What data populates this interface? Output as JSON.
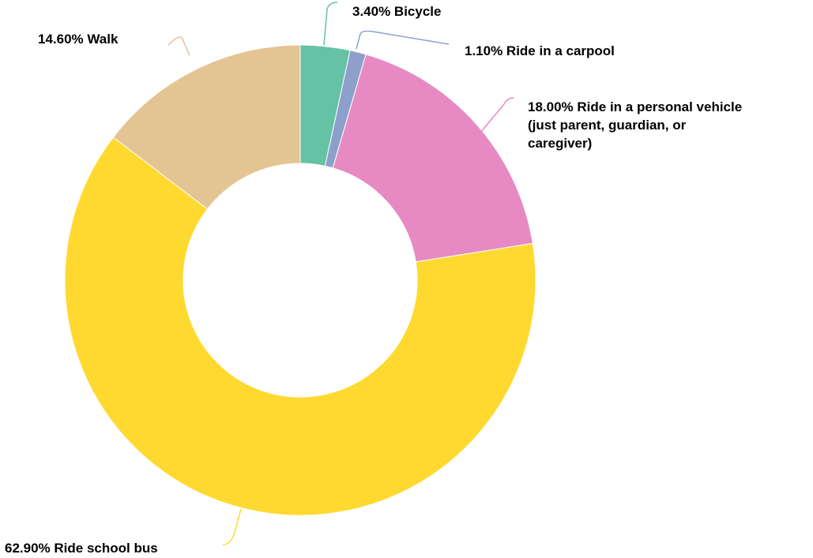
{
  "chart_data": {
    "type": "pie",
    "donut": true,
    "title": "",
    "legend": "none",
    "slices": [
      {
        "label": "Bicycle",
        "value": 3.4,
        "value_text": "3.40%",
        "color": "#66c2a5"
      },
      {
        "label": "Ride in a carpool",
        "value": 1.1,
        "value_text": "1.10%",
        "color": "#8da0cb"
      },
      {
        "label": "Ride in a personal vehicle (just parent, guardian, or caregiver)",
        "value": 18.0,
        "value_text": "18.00%",
        "color": "#e78ac3",
        "label_lines": [
          "18.00% Ride in a personal vehicle",
          "(just parent, guardian, or",
          "caregiver)"
        ]
      },
      {
        "label": "Ride school bus",
        "value": 62.9,
        "value_text": "62.90%",
        "color": "#ffd92f"
      },
      {
        "label": "Walk",
        "value": 14.6,
        "value_text": "14.60%",
        "color": "#e5c494"
      }
    ]
  }
}
